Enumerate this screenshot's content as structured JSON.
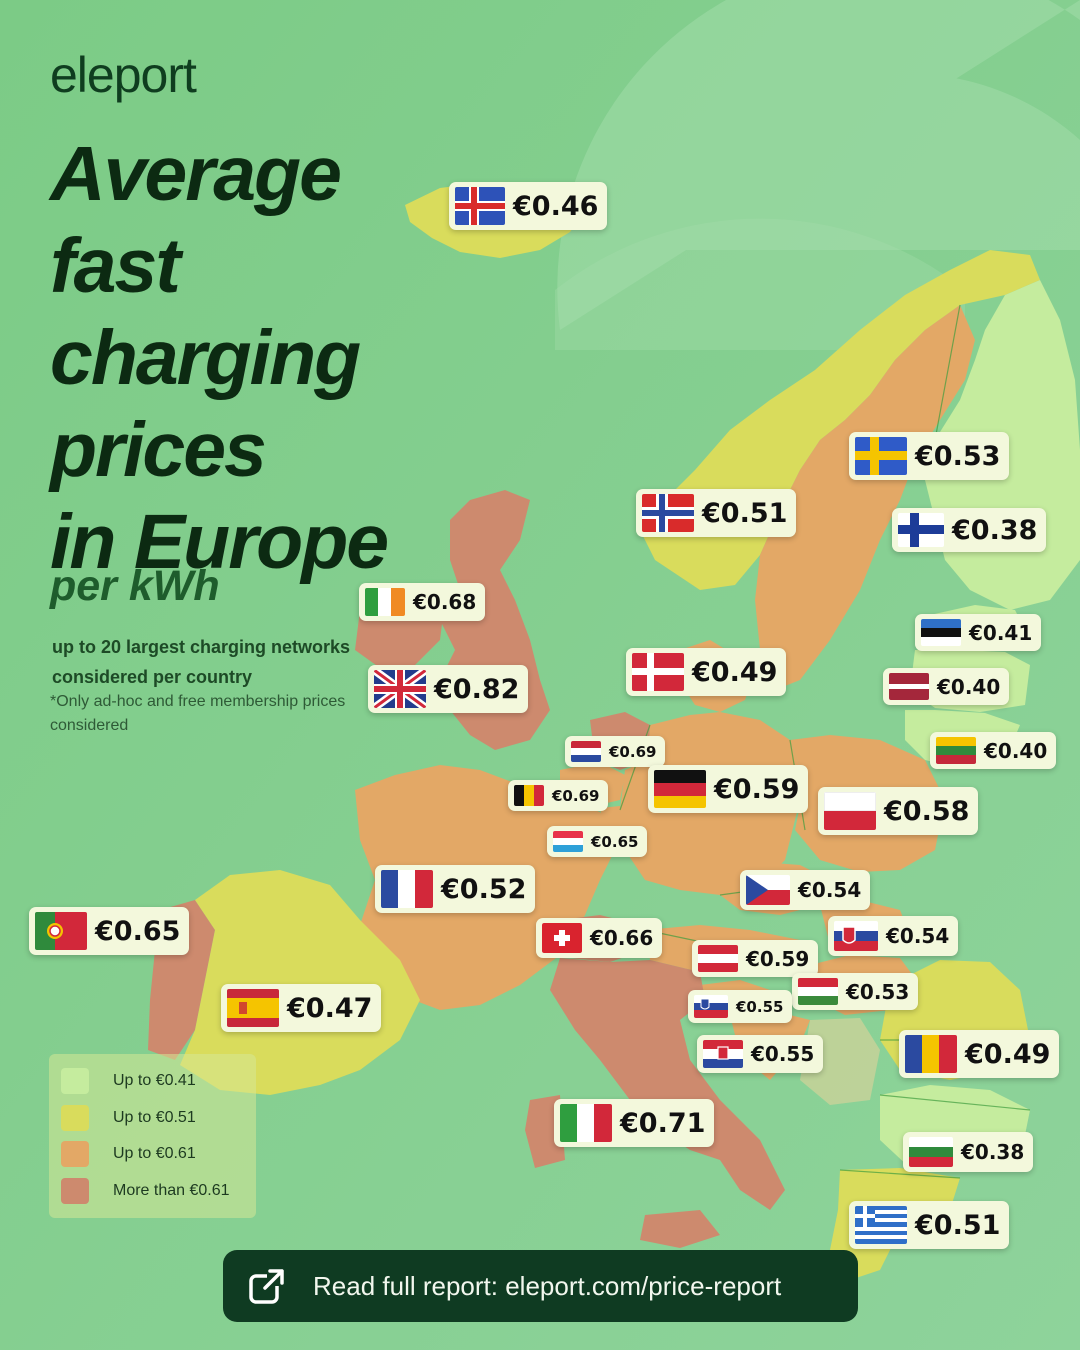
{
  "brand": {
    "logo_text": "eleport"
  },
  "title": {
    "lines": [
      "Average",
      "fast",
      "charging",
      "prices",
      "in Europe"
    ],
    "unit": "per kWh"
  },
  "subtitle": "up to 20 largest charging networks considered per country",
  "footnote": "*Only ad-hoc and free membership prices considered",
  "colors": {
    "background": "#7dcb88",
    "tier1": "#c5ec9e",
    "tier2": "#d9dc5c",
    "tier3": "#e3a866",
    "tier4": "#cd8a6e",
    "label_bg": "#f3f8dc",
    "cta_bg": "#0f3b22"
  },
  "legend": [
    {
      "label": "Up to €0.41",
      "color": "#c5ec9e"
    },
    {
      "label": "Up to €0.51",
      "color": "#d9dc5c"
    },
    {
      "label": "Up to €0.61",
      "color": "#e3a866"
    },
    {
      "label": "More than €0.61",
      "color": "#cd8a6e"
    }
  ],
  "countries": [
    {
      "code": "is",
      "flag": "iceland-flag",
      "price": "€0.46"
    },
    {
      "code": "se",
      "flag": "sweden-flag",
      "price": "€0.53"
    },
    {
      "code": "no",
      "flag": "norway-flag",
      "price": "€0.51"
    },
    {
      "code": "fi",
      "flag": "finland-flag",
      "price": "€0.38"
    },
    {
      "code": "ie",
      "flag": "ireland-flag",
      "price": "€0.68"
    },
    {
      "code": "ee",
      "flag": "estonia-flag",
      "price": "€0.41"
    },
    {
      "code": "dk",
      "flag": "denmark-flag",
      "price": "€0.49"
    },
    {
      "code": "lv",
      "flag": "latvia-flag",
      "price": "€0.40"
    },
    {
      "code": "gb",
      "flag": "united-kingdom-flag",
      "price": "€0.82"
    },
    {
      "code": "nl",
      "flag": "netherlands-flag",
      "price": "€0.69"
    },
    {
      "code": "lt",
      "flag": "lithuania-flag",
      "price": "€0.40"
    },
    {
      "code": "be",
      "flag": "belgium-flag",
      "price": "€0.69"
    },
    {
      "code": "de",
      "flag": "germany-flag",
      "price": "€0.59"
    },
    {
      "code": "pl",
      "flag": "poland-flag",
      "price": "€0.58"
    },
    {
      "code": "lu",
      "flag": "luxembourg-flag",
      "price": "€0.65"
    },
    {
      "code": "fr",
      "flag": "france-flag",
      "price": "€0.52"
    },
    {
      "code": "cz",
      "flag": "czechia-flag",
      "price": "€0.54"
    },
    {
      "code": "pt",
      "flag": "portugal-flag",
      "price": "€0.65"
    },
    {
      "code": "ch",
      "flag": "switzerland-flag",
      "price": "€0.66"
    },
    {
      "code": "sk",
      "flag": "slovakia-flag",
      "price": "€0.54"
    },
    {
      "code": "at",
      "flag": "austria-flag",
      "price": "€0.59"
    },
    {
      "code": "hu",
      "flag": "hungary-flag",
      "price": "€0.53"
    },
    {
      "code": "es",
      "flag": "spain-flag",
      "price": "€0.47"
    },
    {
      "code": "si",
      "flag": "slovenia-flag",
      "price": "€0.55"
    },
    {
      "code": "hr",
      "flag": "croatia-flag",
      "price": "€0.55"
    },
    {
      "code": "ro",
      "flag": "romania-flag",
      "price": "€0.49"
    },
    {
      "code": "it",
      "flag": "italy-flag",
      "price": "€0.71"
    },
    {
      "code": "bg",
      "flag": "bulgaria-flag",
      "price": "€0.38"
    },
    {
      "code": "gr",
      "flag": "greece-flag",
      "price": "€0.51"
    }
  ],
  "cta": {
    "icon": "external-link-icon",
    "text": "Read full report: eleport.com/price-report"
  }
}
